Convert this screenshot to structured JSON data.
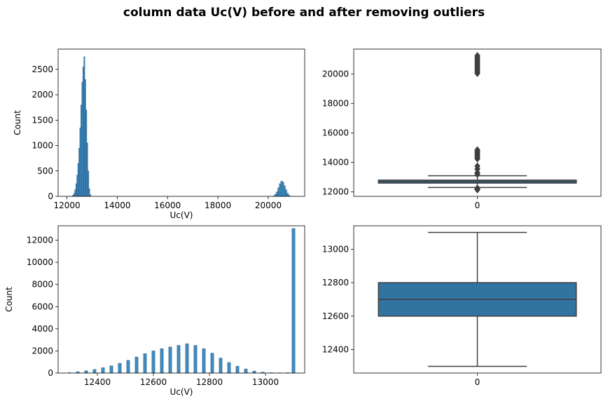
{
  "title": "column data Uc(V) before and after removing outliers",
  "chart_data": [
    {
      "type": "histogram",
      "xlabel": "Uc(V)",
      "ylabel": "Count",
      "xlim": [
        11650,
        21450
      ],
      "ylim": [
        0,
        2900
      ],
      "xticks": [
        "12000",
        "14000",
        "16000",
        "18000",
        "20000"
      ],
      "yticks": [
        "0",
        "500",
        "1000",
        "1500",
        "2000",
        "2500"
      ],
      "color": "#1f77b4",
      "bins": [
        {
          "x": 12240,
          "y": 20
        },
        {
          "x": 12290,
          "y": 60
        },
        {
          "x": 12330,
          "y": 130
        },
        {
          "x": 12370,
          "y": 250
        },
        {
          "x": 12410,
          "y": 420
        },
        {
          "x": 12450,
          "y": 650
        },
        {
          "x": 12490,
          "y": 950
        },
        {
          "x": 12530,
          "y": 1350
        },
        {
          "x": 12570,
          "y": 1800
        },
        {
          "x": 12610,
          "y": 2250
        },
        {
          "x": 12650,
          "y": 2550
        },
        {
          "x": 12690,
          "y": 2750
        },
        {
          "x": 12730,
          "y": 2300
        },
        {
          "x": 12770,
          "y": 1700
        },
        {
          "x": 12810,
          "y": 1050
        },
        {
          "x": 12850,
          "y": 500
        },
        {
          "x": 12890,
          "y": 150
        },
        {
          "x": 12930,
          "y": 30
        },
        {
          "x": 20230,
          "y": 10
        },
        {
          "x": 20290,
          "y": 40
        },
        {
          "x": 20350,
          "y": 90
        },
        {
          "x": 20410,
          "y": 170
        },
        {
          "x": 20470,
          "y": 250
        },
        {
          "x": 20530,
          "y": 300
        },
        {
          "x": 20590,
          "y": 280
        },
        {
          "x": 20650,
          "y": 210
        },
        {
          "x": 20710,
          "y": 130
        },
        {
          "x": 20770,
          "y": 60
        },
        {
          "x": 20830,
          "y": 20
        }
      ]
    },
    {
      "type": "box",
      "xlabel": "",
      "ylabel": "",
      "categories": [
        "0"
      ],
      "ylim": [
        11700,
        21700
      ],
      "yticks": [
        "12000",
        "14000",
        "16000",
        "18000",
        "20000"
      ],
      "color": "#3274a1",
      "q1": 12600,
      "median": 12700,
      "q3": 12800,
      "whisker_low": 12300,
      "whisker_high": 13100,
      "outliers": [
        12150,
        12200,
        12250,
        13200,
        13300,
        13550,
        13750,
        14250,
        14350,
        14450,
        14550,
        14650,
        14750,
        14850,
        20050,
        20150,
        20250,
        20350,
        20450,
        20550,
        20650,
        20750,
        20850,
        20950,
        21050,
        21150,
        21250
      ]
    },
    {
      "type": "histogram",
      "xlabel": "Uc(V)",
      "ylabel": "Count",
      "xlim": [
        12260,
        13140
      ],
      "ylim": [
        0,
        13300
      ],
      "xticks": [
        "12400",
        "12600",
        "12800",
        "13000"
      ],
      "yticks": [
        "0",
        "2000",
        "4000",
        "6000",
        "8000",
        "10000",
        "12000"
      ],
      "color": "#1f77b4",
      "bins": [
        {
          "x": 12300,
          "y": 60
        },
        {
          "x": 12330,
          "y": 120
        },
        {
          "x": 12360,
          "y": 200
        },
        {
          "x": 12390,
          "y": 320
        },
        {
          "x": 12420,
          "y": 480
        },
        {
          "x": 12450,
          "y": 650
        },
        {
          "x": 12480,
          "y": 880
        },
        {
          "x": 12510,
          "y": 1150
        },
        {
          "x": 12540,
          "y": 1450
        },
        {
          "x": 12570,
          "y": 1750
        },
        {
          "x": 12600,
          "y": 2000
        },
        {
          "x": 12630,
          "y": 2200
        },
        {
          "x": 12660,
          "y": 2350
        },
        {
          "x": 12690,
          "y": 2500
        },
        {
          "x": 12720,
          "y": 2650
        },
        {
          "x": 12750,
          "y": 2500
        },
        {
          "x": 12780,
          "y": 2200
        },
        {
          "x": 12810,
          "y": 1800
        },
        {
          "x": 12840,
          "y": 1350
        },
        {
          "x": 12870,
          "y": 950
        },
        {
          "x": 12900,
          "y": 620
        },
        {
          "x": 12930,
          "y": 370
        },
        {
          "x": 12960,
          "y": 180
        },
        {
          "x": 12990,
          "y": 80
        },
        {
          "x": 13020,
          "y": 30
        },
        {
          "x": 13050,
          "y": 20
        },
        {
          "x": 13080,
          "y": 30
        },
        {
          "x": 13100,
          "y": 13050
        }
      ]
    },
    {
      "type": "box",
      "xlabel": "",
      "ylabel": "",
      "categories": [
        "0"
      ],
      "ylim": [
        12260,
        13140
      ],
      "yticks": [
        "12400",
        "12600",
        "12800",
        "13000"
      ],
      "color": "#3274a1",
      "q1": 12600,
      "median": 12700,
      "q3": 12800,
      "whisker_low": 12300,
      "whisker_high": 13100,
      "outliers": []
    }
  ]
}
